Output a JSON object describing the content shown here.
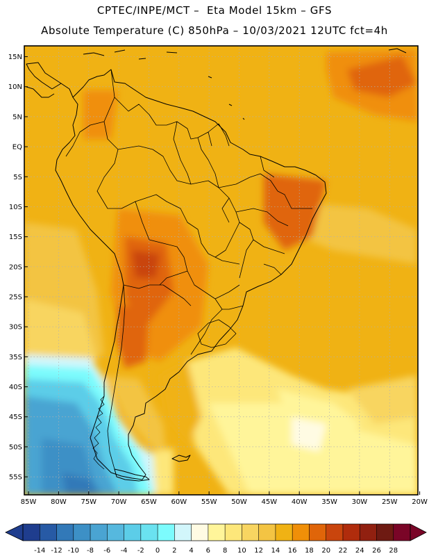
{
  "header": {
    "title_line1": "CPTEC/INPE/MCT –  Eta Model 15km – GFS",
    "title_line2": "Absolute Temperature (C) 850hPa – 10/03/2021 12UTC fct=4h"
  },
  "axes": {
    "lat_labels": [
      {
        "lat": 15,
        "label": "15N"
      },
      {
        "lat": 10,
        "label": "10N"
      },
      {
        "lat": 5,
        "label": "5N"
      },
      {
        "lat": 0,
        "label": "EQ"
      },
      {
        "lat": -5,
        "label": "5S"
      },
      {
        "lat": -10,
        "label": "10S"
      },
      {
        "lat": -15,
        "label": "15S"
      },
      {
        "lat": -20,
        "label": "20S"
      },
      {
        "lat": -25,
        "label": "25S"
      },
      {
        "lat": -30,
        "label": "30S"
      },
      {
        "lat": -35,
        "label": "35S"
      },
      {
        "lat": -40,
        "label": "40S"
      },
      {
        "lat": -45,
        "label": "45S"
      },
      {
        "lat": -50,
        "label": "50S"
      },
      {
        "lat": -55,
        "label": "55S"
      }
    ],
    "lon_labels": [
      {
        "lon": -85,
        "label": "85W"
      },
      {
        "lon": -80,
        "label": "80W"
      },
      {
        "lon": -75,
        "label": "75W"
      },
      {
        "lon": -70,
        "label": "70W"
      },
      {
        "lon": -65,
        "label": "65W"
      },
      {
        "lon": -60,
        "label": "60W"
      },
      {
        "lon": -55,
        "label": "55W"
      },
      {
        "lon": -50,
        "label": "50W"
      },
      {
        "lon": -45,
        "label": "45W"
      },
      {
        "lon": -40,
        "label": "40W"
      },
      {
        "lon": -35,
        "label": "35W"
      },
      {
        "lon": -30,
        "label": "30W"
      },
      {
        "lon": -25,
        "label": "25W"
      },
      {
        "lon": -20,
        "label": "20W"
      }
    ],
    "lon_range": [
      -85.7,
      -20.3
    ],
    "lat_range": [
      -58,
      16.8
    ]
  },
  "colorbar": {
    "colors": [
      "#1f3d8e",
      "#275aa5",
      "#3279b8",
      "#3d90c6",
      "#4aa4d2",
      "#56b8de",
      "#5ccde8",
      "#6ae2f0",
      "#7cfbfd",
      "#d2f6fb",
      "#fffbe3",
      "#fff59a",
      "#fde77a",
      "#f8d561",
      "#f3c443",
      "#f0b214",
      "#f08f08",
      "#e06509",
      "#c9450d",
      "#b02c0c",
      "#912010",
      "#6e1a12",
      "#7a0527"
    ],
    "tick_labels": [
      "-14",
      "-12",
      "-10",
      "-8",
      "-6",
      "-4",
      "-2",
      "0",
      "2",
      "4",
      "6",
      "8",
      "10",
      "12",
      "14",
      "16",
      "18",
      "20",
      "22",
      "24",
      "26",
      "28"
    ]
  }
}
